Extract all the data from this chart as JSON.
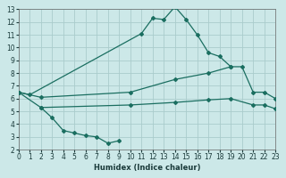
{
  "xlabel": "Humidex (Indice chaleur)",
  "xlim": [
    0,
    23
  ],
  "ylim": [
    2,
    13
  ],
  "bg_color": "#cce8e8",
  "grid_color": "#aacccc",
  "line_color": "#1a6e60",
  "curve1_x": [
    0,
    1,
    11,
    12,
    13,
    14,
    15,
    16,
    17,
    18,
    19
  ],
  "curve1_y": [
    6.5,
    6.3,
    11.1,
    12.3,
    12.2,
    13.2,
    12.2,
    11.0,
    9.6,
    9.3,
    8.5
  ],
  "curve2_x": [
    0,
    2,
    10,
    14,
    17,
    19,
    20,
    21,
    22,
    23
  ],
  "curve2_y": [
    6.5,
    6.1,
    6.5,
    7.5,
    8.0,
    8.5,
    8.5,
    6.5,
    6.5,
    6.0
  ],
  "curve3_x": [
    0,
    2,
    3,
    4,
    5,
    6,
    7,
    8,
    9
  ],
  "curve3_y": [
    6.5,
    5.3,
    4.5,
    3.5,
    3.3,
    3.1,
    3.0,
    2.5,
    2.7
  ],
  "curve4_x": [
    2,
    10,
    14,
    17,
    19,
    21,
    22,
    23
  ],
  "curve4_y": [
    5.3,
    5.5,
    5.7,
    5.9,
    6.0,
    5.5,
    5.5,
    5.2
  ]
}
